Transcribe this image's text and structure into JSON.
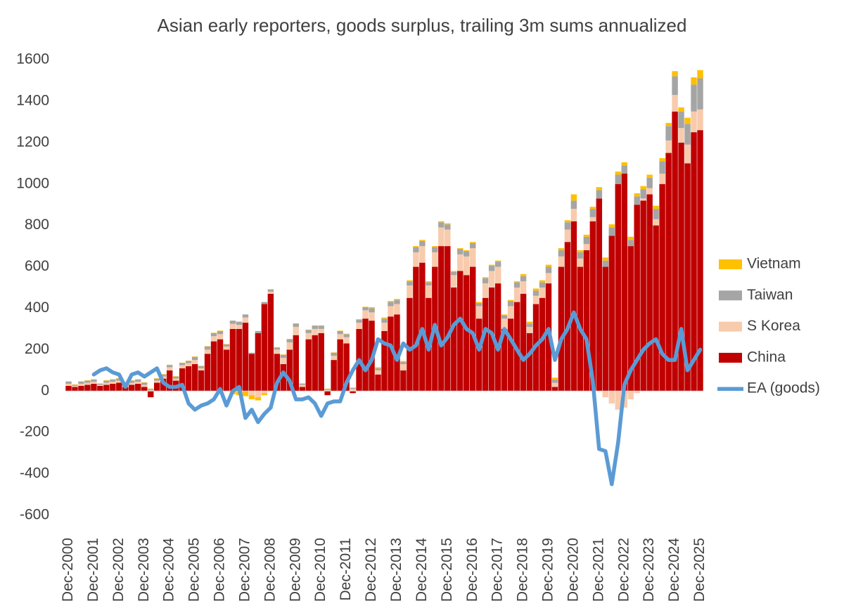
{
  "chart_data": {
    "type": "stacked_bar_line",
    "title": "Asian early reporters, goods surplus, trailing 3m sums annualized",
    "categories": [
      "Dec-2000",
      null,
      null,
      null,
      "Dec-2001",
      null,
      null,
      null,
      "Dec-2002",
      null,
      null,
      null,
      "Dec-2003",
      null,
      null,
      null,
      "Dec-2004",
      null,
      null,
      null,
      "Dec-2005",
      null,
      null,
      null,
      "Dec-2006",
      null,
      null,
      null,
      "Dec-2007",
      null,
      null,
      null,
      "Dec-2008",
      null,
      null,
      null,
      "Dec-2009",
      null,
      null,
      null,
      "Dec-2010",
      null,
      null,
      null,
      "Dec-2011",
      null,
      null,
      null,
      "Dec-2012",
      null,
      null,
      null,
      "Dec-2013",
      null,
      null,
      null,
      "Dec-2014",
      null,
      null,
      null,
      "Dec-2015",
      null,
      null,
      null,
      "Dec-2016",
      null,
      null,
      null,
      "Dec-2017",
      null,
      null,
      null,
      "Dec-2018",
      null,
      null,
      null,
      "Dec-2019",
      null,
      null,
      null,
      "Dec-2020",
      null,
      null,
      null,
      "Dec-2021",
      null,
      null,
      null,
      "Dec-2022",
      null,
      null,
      null,
      "Dec-2023",
      null,
      null,
      null,
      "Dec-2024",
      null,
      null,
      null,
      "Dec-2025"
    ],
    "series": [
      {
        "name": "China",
        "color": "#c00000",
        "kind": "bar",
        "values": [
          25,
          20,
          25,
          30,
          35,
          25,
          30,
          35,
          40,
          20,
          30,
          35,
          20,
          -30,
          40,
          60,
          100,
          50,
          110,
          120,
          130,
          100,
          180,
          240,
          250,
          200,
          300,
          300,
          330,
          180,
          280,
          420,
          470,
          180,
          130,
          200,
          270,
          20,
          250,
          270,
          280,
          -20,
          150,
          250,
          230,
          -10,
          300,
          350,
          340,
          80,
          290,
          360,
          370,
          100,
          450,
          600,
          620,
          450,
          600,
          700,
          700,
          500,
          580,
          560,
          600,
          350,
          450,
          500,
          520,
          300,
          350,
          430,
          470,
          280,
          420,
          450,
          520,
          20,
          600,
          720,
          820,
          600,
          680,
          820,
          930,
          600,
          750,
          1000,
          1050,
          700,
          900,
          920,
          950,
          800,
          1000,
          1150,
          1350,
          1200,
          1100,
          1250,
          1260
        ]
      },
      {
        "name": "S Korea",
        "color": "#f8cbad",
        "kind": "bar",
        "values": [
          10,
          5,
          10,
          10,
          10,
          5,
          10,
          10,
          10,
          5,
          10,
          10,
          10,
          5,
          10,
          10,
          15,
          10,
          15,
          15,
          20,
          10,
          20,
          25,
          25,
          15,
          25,
          20,
          25,
          -20,
          -30,
          -10,
          10,
          20,
          30,
          35,
          40,
          10,
          30,
          30,
          20,
          5,
          20,
          25,
          30,
          10,
          30,
          40,
          40,
          20,
          40,
          50,
          50,
          30,
          60,
          70,
          80,
          60,
          70,
          90,
          80,
          60,
          80,
          90,
          90,
          60,
          70,
          80,
          80,
          50,
          60,
          70,
          60,
          30,
          40,
          50,
          50,
          20,
          50,
          60,
          60,
          40,
          30,
          20,
          0,
          -30,
          -60,
          -90,
          -80,
          -40,
          -10,
          10,
          30,
          30,
          50,
          60,
          80,
          70,
          90,
          100,
          100
        ]
      },
      {
        "name": "Taiwan",
        "color": "#a5a5a5",
        "kind": "bar",
        "values": [
          10,
          5,
          10,
          10,
          10,
          5,
          10,
          10,
          10,
          5,
          10,
          10,
          10,
          5,
          10,
          10,
          10,
          10,
          10,
          10,
          15,
          10,
          15,
          15,
          15,
          10,
          15,
          15,
          15,
          5,
          10,
          10,
          10,
          10,
          15,
          15,
          15,
          5,
          15,
          15,
          15,
          5,
          15,
          15,
          15,
          5,
          15,
          15,
          20,
          10,
          20,
          20,
          20,
          10,
          20,
          25,
          25,
          15,
          25,
          25,
          25,
          15,
          25,
          25,
          25,
          15,
          25,
          25,
          25,
          15,
          25,
          25,
          25,
          15,
          25,
          25,
          30,
          15,
          30,
          35,
          40,
          30,
          35,
          40,
          40,
          30,
          40,
          45,
          40,
          30,
          40,
          45,
          50,
          50,
          60,
          70,
          90,
          80,
          100,
          130,
          150
        ]
      },
      {
        "name": "Vietnam",
        "color": "#ffc000",
        "kind": "bar",
        "values": [
          2,
          2,
          2,
          2,
          2,
          2,
          2,
          2,
          2,
          2,
          2,
          2,
          2,
          2,
          2,
          2,
          2,
          2,
          2,
          2,
          2,
          2,
          2,
          2,
          2,
          2,
          -15,
          -20,
          -25,
          -20,
          -15,
          -10,
          2,
          2,
          2,
          2,
          2,
          2,
          2,
          2,
          2,
          2,
          2,
          2,
          2,
          2,
          2,
          2,
          5,
          5,
          5,
          5,
          5,
          5,
          5,
          5,
          5,
          5,
          5,
          5,
          5,
          5,
          5,
          5,
          5,
          5,
          5,
          5,
          5,
          5,
          5,
          5,
          10,
          10,
          10,
          10,
          10,
          10,
          10,
          10,
          30,
          10,
          10,
          10,
          15,
          15,
          15,
          15,
          15,
          15,
          15,
          15,
          15,
          15,
          15,
          15,
          25,
          20,
          30,
          35,
          40
        ]
      },
      {
        "name": "EA (goods)",
        "color": "#5b9bd5",
        "kind": "line",
        "values": [
          null,
          null,
          null,
          null,
          80,
          100,
          110,
          90,
          80,
          20,
          80,
          90,
          70,
          90,
          110,
          40,
          20,
          20,
          30,
          -60,
          -90,
          -70,
          -60,
          -40,
          10,
          -70,
          0,
          20,
          -130,
          -90,
          -150,
          -110,
          -80,
          40,
          90,
          50,
          -40,
          -40,
          -30,
          -60,
          -120,
          -60,
          -50,
          -50,
          40,
          100,
          150,
          100,
          150,
          250,
          230,
          220,
          150,
          230,
          200,
          220,
          300,
          200,
          320,
          220,
          260,
          320,
          350,
          300,
          280,
          200,
          300,
          280,
          200,
          300,
          250,
          200,
          150,
          180,
          220,
          250,
          300,
          150,
          250,
          300,
          380,
          300,
          250,
          50,
          -280,
          -290,
          -450,
          -250,
          30,
          100,
          150,
          200,
          230,
          250,
          180,
          150,
          150,
          300,
          100,
          150,
          200
        ]
      }
    ],
    "ylim": [
      -600,
      1600
    ],
    "yticks": [
      -600,
      -400,
      -200,
      0,
      200,
      400,
      600,
      800,
      1000,
      1200,
      1400,
      1600
    ],
    "grid": false,
    "legend": "right"
  }
}
